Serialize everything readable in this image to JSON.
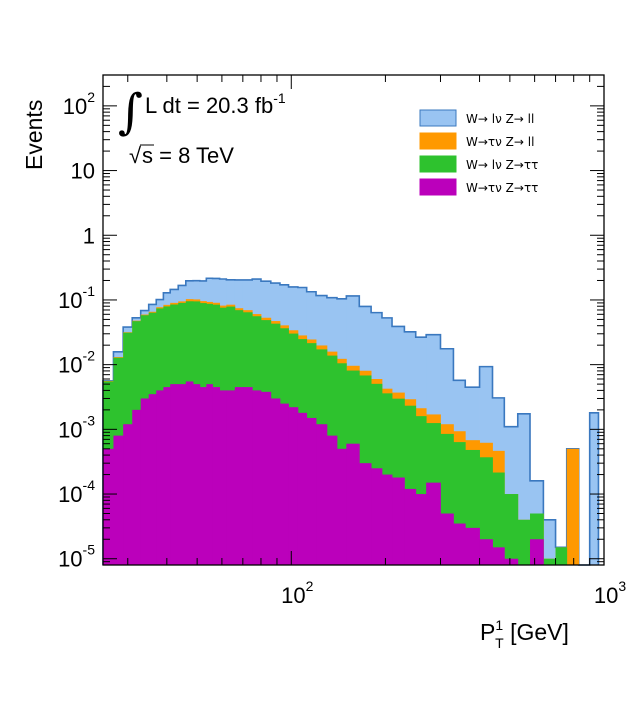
{
  "chart_data": {
    "type": "area",
    "stacked": true,
    "xscale": "log",
    "yscale": "log",
    "xlim": [
      25,
      1000
    ],
    "ylim": [
      8e-06,
      300
    ],
    "xlabel": {
      "main": "P",
      "sup": "1",
      "sub": "T",
      "unit": " [GeV]"
    },
    "ylabel": "Events",
    "annotations": {
      "lumi": {
        "integral": "∫",
        "text": "L dt = 20.3 fb",
        "sup": "-1"
      },
      "energy": {
        "sqrt": "√",
        "text": "s = 8 TeV"
      }
    },
    "x_ticks": [
      {
        "v": 100,
        "base": "10",
        "exp": "2"
      },
      {
        "v": 1000,
        "base": "10",
        "exp": "3"
      }
    ],
    "y_ticks": [
      {
        "v": 100,
        "base": "10",
        "exp": "2"
      },
      {
        "v": 10,
        "base": "10",
        "exp": ""
      },
      {
        "v": 1,
        "base": "1",
        "exp": ""
      },
      {
        "v": 0.1,
        "base": "10",
        "exp": "-1"
      },
      {
        "v": 0.01,
        "base": "10",
        "exp": "-2"
      },
      {
        "v": 0.001,
        "base": "10",
        "exp": "-3"
      },
      {
        "v": 0.0001,
        "base": "10",
        "exp": "-4"
      },
      {
        "v": 1e-05,
        "base": "10",
        "exp": "-5"
      }
    ],
    "legend_position": "top-right",
    "legend": [
      {
        "label": "W→ lν Z→ ll",
        "color": "#99c4f2"
      },
      {
        "label": "W→τν Z→ ll",
        "color": "#ff9900"
      },
      {
        "label": "W→ lν Z→ττ",
        "color": "#2ec22e"
      },
      {
        "label": "W→τν Z→ττ",
        "color": "#bb00bb"
      }
    ],
    "bin_edges": [
      25,
      27,
      29,
      31,
      33,
      35,
      37,
      39,
      41,
      43.5,
      46,
      48.5,
      51,
      53.5,
      56,
      59,
      62,
      66,
      70,
      75,
      80,
      86,
      92,
      98,
      105,
      112,
      120,
      130,
      140,
      150,
      165,
      180,
      195,
      210,
      230,
      250,
      270,
      300,
      330,
      360,
      400,
      440,
      480,
      530,
      580,
      640,
      700,
      760,
      830,
      900,
      960
    ],
    "series": [
      {
        "name": "W→τν Z→ττ",
        "color": "#bb00bb",
        "values": [
          0.0005,
          0.0008,
          0.0012,
          0.002,
          0.003,
          0.0035,
          0.004,
          0.0045,
          0.005,
          0.005,
          0.0055,
          0.005,
          0.0045,
          0.005,
          0.0045,
          0.004,
          0.004,
          0.0045,
          0.0045,
          0.004,
          0.0038,
          0.003,
          0.0025,
          0.0022,
          0.0018,
          0.0015,
          0.0012,
          0.0008,
          0.0005,
          0.0006,
          0.0003,
          0.00025,
          0.0002,
          0.00018,
          0.00012,
          0.0001,
          0.00015,
          5e-05,
          3.5e-05,
          3e-05,
          2e-05,
          1.5e-05,
          1e-05,
          0,
          2e-05,
          0,
          0,
          0,
          0,
          0
        ]
      },
      {
        "name": "W→ lν Z→ττ",
        "color": "#2ec22e",
        "values": [
          0.005,
          0.012,
          0.03,
          0.045,
          0.055,
          0.06,
          0.07,
          0.075,
          0.08,
          0.085,
          0.09,
          0.09,
          0.085,
          0.082,
          0.08,
          0.072,
          0.075,
          0.065,
          0.06,
          0.052,
          0.045,
          0.04,
          0.034,
          0.028,
          0.023,
          0.02,
          0.016,
          0.013,
          0.01,
          0.0075,
          0.0065,
          0.0048,
          0.0034,
          0.0028,
          0.0022,
          0.0015,
          0.0011,
          0.0008,
          0.0006,
          0.00045,
          0.00035,
          0.0002,
          9e-05,
          4e-05,
          3e-05,
          1e-05,
          1.5e-05,
          0,
          0,
          0
        ]
      },
      {
        "name": "W→τν Z→ ll",
        "color": "#ff9900",
        "values": [
          0.0001,
          0.0003,
          0.0005,
          0.0008,
          0.0015,
          0.0022,
          0.0032,
          0.0045,
          0.0052,
          0.005,
          0.0075,
          0.007,
          0.0065,
          0.0063,
          0.006,
          0.0058,
          0.0055,
          0.005,
          0.005,
          0.0045,
          0.0043,
          0.0042,
          0.004,
          0.0038,
          0.0035,
          0.003,
          0.0026,
          0.0021,
          0.0018,
          0.0015,
          0.00125,
          0.00095,
          0.00065,
          0.00072,
          0.0006,
          0.00052,
          0.00045,
          0.00035,
          0.0003,
          0.0002,
          0.00025,
          0.00025,
          0,
          0,
          0,
          0,
          0,
          0.0005,
          0,
          0
        ]
      },
      {
        "name": "W→ lν Z→ ll",
        "color": "#99c4f2",
        "values": [
          0,
          0.0027,
          0.0064,
          0.0052,
          0.0091,
          0.0195,
          0.0241,
          0.0448,
          0.0554,
          0.0725,
          0.0945,
          0.0962,
          0.1008,
          0.1233,
          0.1242,
          0.1289,
          0.1202,
          0.1296,
          0.1345,
          0.1498,
          0.1421,
          0.1355,
          0.1307,
          0.1251,
          0.1275,
          0.1094,
          0.0972,
          0.0924,
          0.0918,
          0.1056,
          0.0713,
          0.0577,
          0.0486,
          0.0352,
          0.0293,
          0.0245,
          0.0273,
          0.0164,
          0.0048,
          0.0038,
          0.0087,
          0.0026,
          0.001,
          0.0017,
          0.00011,
          3e-05,
          0,
          0,
          0,
          0.0018
        ]
      }
    ]
  }
}
